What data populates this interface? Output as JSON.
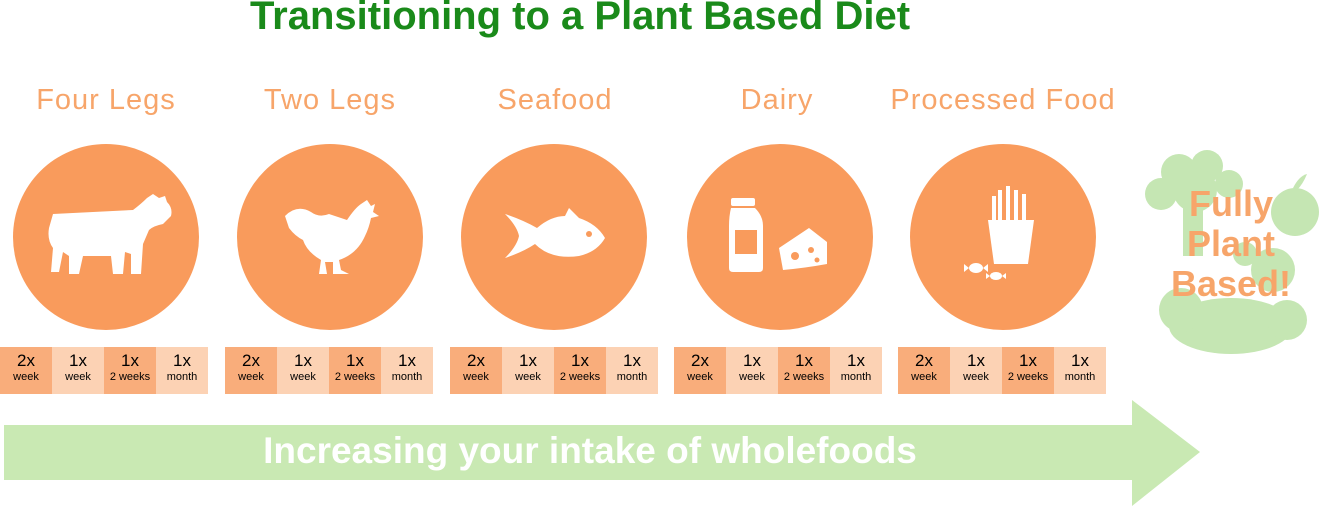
{
  "title": "Transitioning to a Plant Based Diet",
  "categories": [
    {
      "label": "Four Legs",
      "icon": "cow-icon"
    },
    {
      "label": "Two Legs",
      "icon": "chicken-icon"
    },
    {
      "label": "Seafood",
      "icon": "fish-icon"
    },
    {
      "label": "Dairy",
      "icon": "milk-cheese-icon"
    },
    {
      "label": "Processed Food",
      "icon": "fries-candy-icon"
    }
  ],
  "frequencies": [
    {
      "count": "2x",
      "period": "week"
    },
    {
      "count": "1x",
      "period": "week"
    },
    {
      "count": "1x",
      "period": "2 weeks"
    },
    {
      "count": "1x",
      "period": "month"
    }
  ],
  "arrow_text": "Increasing your intake of wholefoods",
  "final_lines": [
    "Fully",
    "Plant",
    "Based!"
  ],
  "colors": {
    "title": "#1a8a1a",
    "orange": "#f99b5c",
    "label_orange": "#f7a56a",
    "cell_dark": "#f9ad7b",
    "cell_light": "#fcd2b4",
    "arrow_green": "#c9e9b3",
    "veg_green": "#c5e6b3"
  }
}
